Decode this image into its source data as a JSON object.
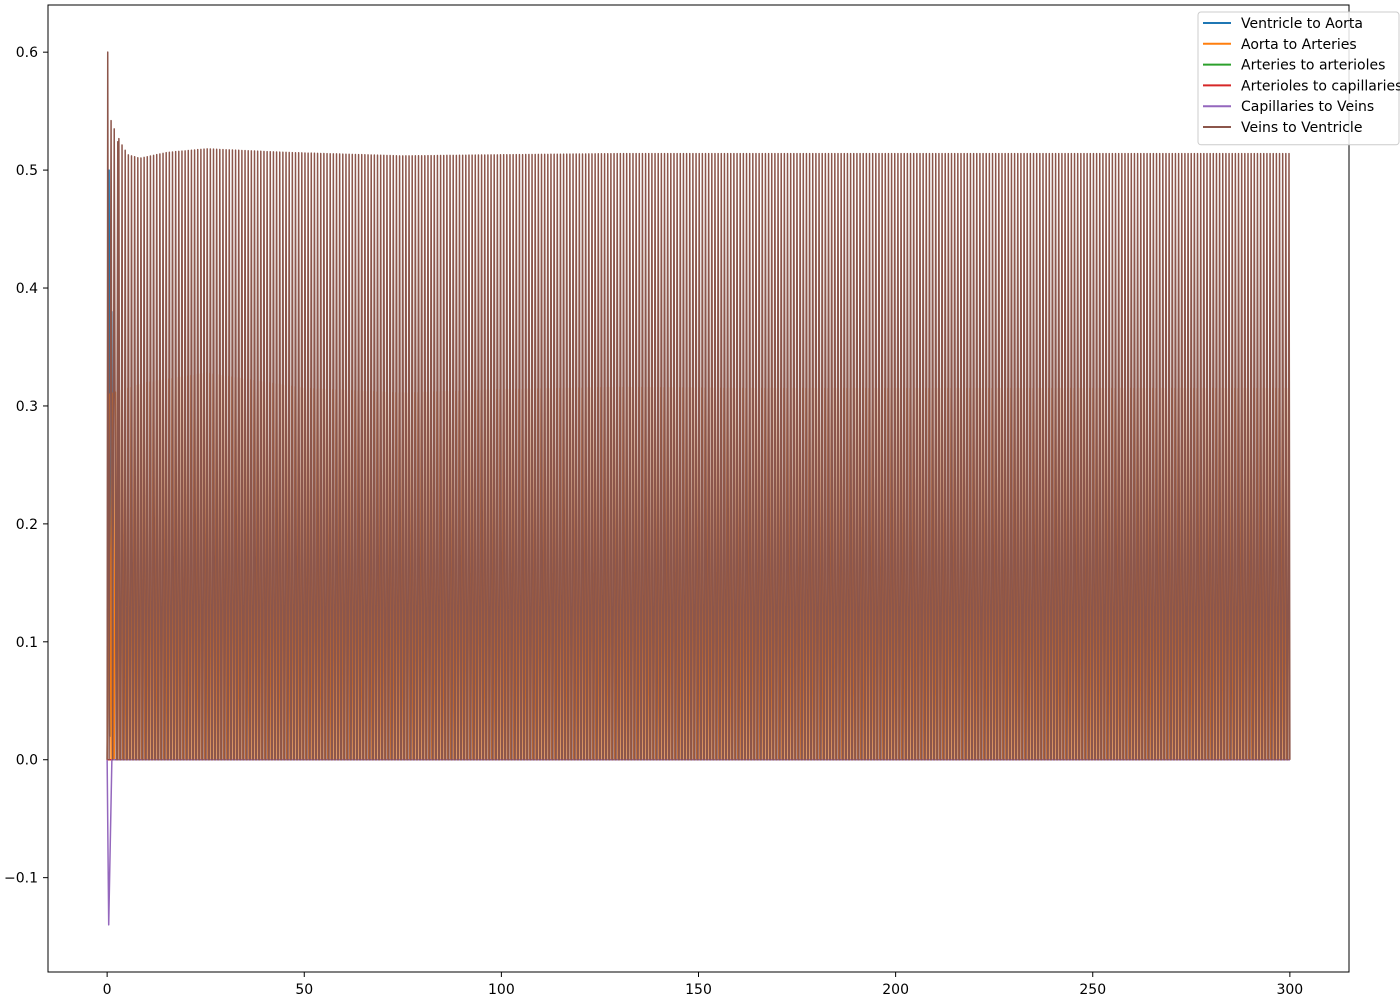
{
  "chart_data": {
    "type": "line",
    "title": "",
    "xlabel": "",
    "ylabel": "",
    "xlim": [
      -15,
      315
    ],
    "ylim": [
      -0.18,
      0.64
    ],
    "x_ticks": [
      0,
      50,
      100,
      150,
      200,
      250,
      300
    ],
    "x_tick_labels": [
      "0",
      "50",
      "100",
      "150",
      "200",
      "250",
      "300"
    ],
    "y_ticks": [
      -0.1,
      0.0,
      0.1,
      0.2,
      0.3,
      0.4,
      0.5,
      0.6
    ],
    "y_tick_labels": [
      "−0.1",
      "0.0",
      "0.1",
      "0.2",
      "0.3",
      "0.4",
      "0.5",
      "0.6"
    ],
    "grid": false,
    "legend_position": "top-right",
    "cycle_period": 0.8,
    "series": [
      {
        "name": "Ventricle to Aorta",
        "color": "#1f77b4",
        "initial": [
          [
            0,
            0.0
          ],
          [
            0.2,
            0.12
          ],
          [
            0.5,
            0.5
          ],
          [
            0.8,
            0.02
          ],
          [
            1.2,
            0.38
          ],
          [
            1.6,
            0.0
          ]
        ],
        "envelope": [
          [
            0,
            0.0
          ],
          [
            300,
            0.0
          ]
        ]
      },
      {
        "name": "Aorta to Arteries",
        "color": "#ff7f0e",
        "initial": [
          [
            0,
            0.0
          ],
          [
            0.6,
            0.31
          ],
          [
            1.0,
            0.0
          ]
        ],
        "envelope": [
          [
            0,
            0.31
          ],
          [
            10,
            0.32
          ],
          [
            25,
            0.328
          ],
          [
            50,
            0.315
          ],
          [
            75,
            0.311
          ],
          [
            100,
            0.314
          ],
          [
            130,
            0.316
          ],
          [
            160,
            0.315
          ],
          [
            200,
            0.315
          ],
          [
            250,
            0.315
          ],
          [
            300,
            0.315
          ]
        ]
      },
      {
        "name": "Arteries to arterioles",
        "color": "#2ca02c",
        "initial": [],
        "envelope": [
          [
            0,
            0.0
          ],
          [
            300,
            0.0
          ]
        ]
      },
      {
        "name": "Arterioles to capillaries",
        "color": "#d62728",
        "initial": [],
        "envelope": [
          [
            0,
            0.0
          ],
          [
            300,
            0.0
          ]
        ]
      },
      {
        "name": "Capillaries to Veins",
        "color": "#9467bd",
        "initial": [
          [
            0,
            0.0
          ],
          [
            0.4,
            -0.14
          ],
          [
            1.2,
            0.0
          ]
        ],
        "envelope": [
          [
            0,
            0.0
          ],
          [
            300,
            0.0
          ]
        ]
      },
      {
        "name": "Veins to Ventricle",
        "color": "#8c564b",
        "initial": [
          [
            0,
            0.0
          ],
          [
            0.15,
            0.6
          ],
          [
            0.5,
            0.0
          ],
          [
            1.0,
            0.542
          ],
          [
            1.4,
            0.0
          ],
          [
            1.8,
            0.535
          ],
          [
            2.3,
            0.0
          ],
          [
            2.7,
            0.524
          ]
        ],
        "envelope": [
          [
            0,
            0.6
          ],
          [
            1,
            0.542
          ],
          [
            2,
            0.533
          ],
          [
            3,
            0.524
          ],
          [
            5,
            0.513
          ],
          [
            8,
            0.51
          ],
          [
            15,
            0.515
          ],
          [
            25,
            0.518
          ],
          [
            45,
            0.515
          ],
          [
            75,
            0.512
          ],
          [
            100,
            0.513
          ],
          [
            130,
            0.514
          ],
          [
            200,
            0.514
          ],
          [
            300,
            0.514
          ]
        ]
      }
    ]
  }
}
